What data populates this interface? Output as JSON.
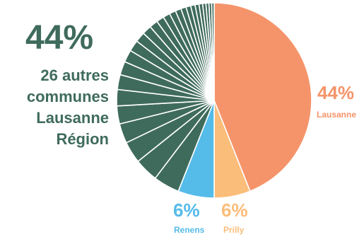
{
  "chart_data": {
    "type": "pie",
    "slices": [
      {
        "name": "Lausanne",
        "value": 44,
        "value_label": "44%",
        "color": "#f5946a"
      },
      {
        "name": "Prilly",
        "value": 6,
        "value_label": "6%",
        "color": "#fbbd7a"
      },
      {
        "name": "Renens",
        "value": 6,
        "value_label": "6%",
        "color": "#55bbe9"
      },
      {
        "name": "26 autres communes Lausanne Région",
        "value": 44,
        "value_label": "44%",
        "color": "#3f6b5c"
      }
    ],
    "others_subslices": 26,
    "start_angle": "12 o'clock, clockwise"
  },
  "labels": {
    "others_pct": "44%",
    "others_text": "26 autres\ncommunes\nLausanne\nRégion",
    "lausanne_pct": "44%",
    "lausanne_name": "Lausanne",
    "renens_pct": "6%",
    "renens_name": "Renens",
    "prilly_pct": "6%",
    "prilly_name": "Prilly"
  }
}
